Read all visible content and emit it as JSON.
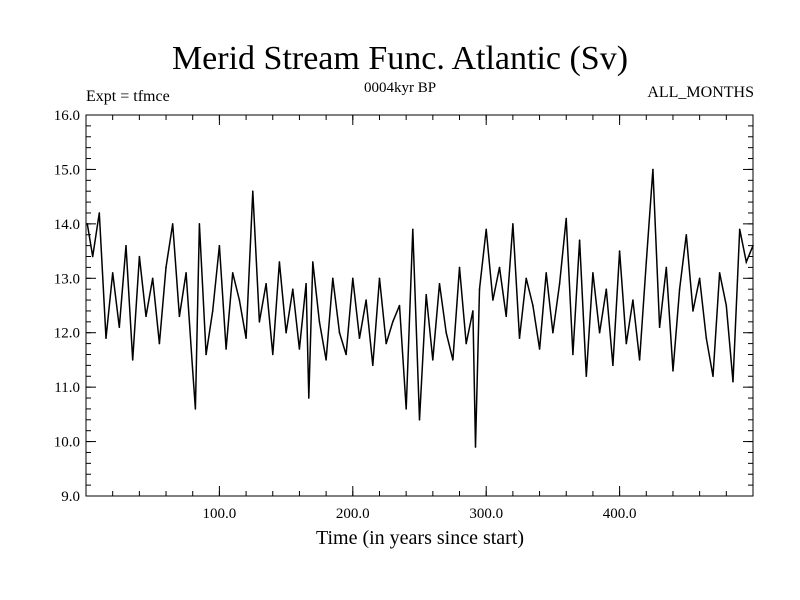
{
  "chart_data": {
    "type": "line",
    "title": "Merid Stream Func. Atlantic (Sv)",
    "subtitle": "0004kyr BP",
    "expt_label": "Expt = tfmce",
    "months_label": "ALL_MONTHS",
    "xlabel": "Time (in years since start)",
    "ylabel": "",
    "xlim": [
      0,
      500
    ],
    "ylim": [
      9.0,
      16.0
    ],
    "xticks": [
      100,
      200,
      300,
      400
    ],
    "xtick_labels": [
      "100.0",
      "200.0",
      "300.0",
      "400.0"
    ],
    "yticks": [
      9.0,
      10.0,
      11.0,
      12.0,
      13.0,
      14.0,
      15.0,
      16.0
    ],
    "ytick_labels": [
      "9.0",
      "10.0",
      "11.0",
      "12.0",
      "13.0",
      "14.0",
      "15.0",
      "16.0"
    ],
    "grid": false,
    "line_color": "#000000",
    "series": [
      {
        "name": "Merid Stream Func. Atlantic",
        "x": [
          1,
          5,
          10,
          15,
          20,
          25,
          30,
          35,
          40,
          45,
          50,
          55,
          60,
          65,
          70,
          75,
          80,
          82,
          85,
          90,
          95,
          100,
          105,
          110,
          115,
          120,
          125,
          130,
          135,
          140,
          145,
          150,
          155,
          160,
          165,
          167,
          170,
          175,
          180,
          185,
          190,
          195,
          200,
          205,
          210,
          215,
          220,
          225,
          230,
          235,
          240,
          245,
          250,
          255,
          260,
          265,
          270,
          275,
          280,
          285,
          290,
          292,
          295,
          300,
          305,
          310,
          315,
          320,
          325,
          330,
          335,
          340,
          345,
          350,
          355,
          360,
          365,
          370,
          375,
          380,
          385,
          390,
          395,
          400,
          405,
          410,
          415,
          420,
          425,
          430,
          435,
          440,
          445,
          450,
          455,
          460,
          465,
          470,
          475,
          480,
          485,
          490,
          495,
          500
        ],
        "values": [
          14.0,
          13.4,
          14.2,
          11.9,
          13.1,
          12.1,
          13.6,
          11.5,
          13.4,
          12.3,
          13.0,
          11.8,
          13.2,
          14.0,
          12.3,
          13.1,
          11.3,
          10.6,
          14.0,
          11.6,
          12.4,
          13.6,
          11.7,
          13.1,
          12.6,
          11.9,
          14.6,
          12.2,
          12.9,
          11.6,
          13.3,
          12.0,
          12.8,
          11.7,
          12.9,
          10.8,
          13.3,
          12.2,
          11.5,
          13.0,
          12.0,
          11.6,
          13.0,
          11.9,
          12.6,
          11.4,
          13.0,
          11.8,
          12.2,
          12.5,
          10.6,
          13.9,
          10.4,
          12.7,
          11.5,
          12.9,
          12.0,
          11.5,
          13.2,
          11.8,
          12.4,
          9.9,
          12.8,
          13.9,
          12.6,
          13.2,
          12.3,
          14.0,
          11.9,
          13.0,
          12.5,
          11.7,
          13.1,
          12.0,
          12.9,
          14.1,
          11.6,
          13.7,
          11.2,
          13.1,
          12.0,
          12.8,
          11.4,
          13.5,
          11.8,
          12.6,
          11.5,
          13.3,
          15.0,
          12.1,
          13.2,
          11.3,
          12.8,
          13.8,
          12.4,
          13.0,
          11.9,
          11.2,
          13.1,
          12.5,
          11.1,
          13.9,
          13.3,
          13.6
        ]
      }
    ]
  }
}
